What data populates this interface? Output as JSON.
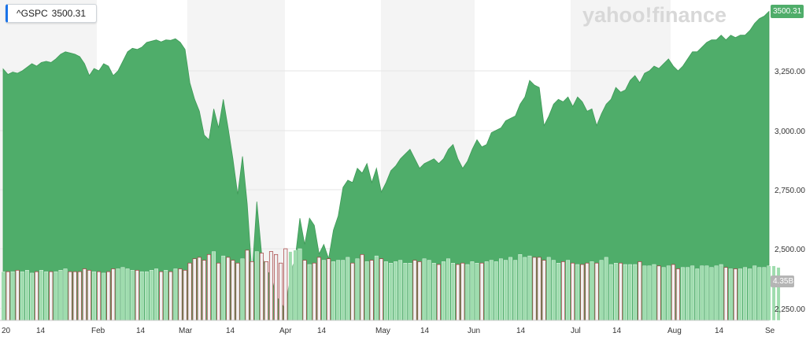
{
  "watermark": "yahoo!finance",
  "ticker": {
    "symbol": "^GSPC",
    "last_price": "3500.31"
  },
  "price_label": "3500.31",
  "volume_label": "4.35B",
  "colors": {
    "area": "#4fad6a",
    "band": "#f4f4f4",
    "vol_up": "#9fdcae",
    "vol_down": "#f1f1f1",
    "vol_down_stroke": "#a33a3a"
  },
  "chart_data": {
    "type": "area",
    "ticker": "^GSPC",
    "y_ticks": [
      "3,250.00",
      "3,000.00",
      "2,750.00",
      "2,500.00",
      "2,250.00"
    ],
    "ylim": [
      2220,
      3500
    ],
    "x_ticks": [
      "20",
      "14",
      "Feb",
      "14",
      "Mar",
      "14",
      "Apr",
      "14",
      "May",
      "14",
      "Jun",
      "14",
      "Jul",
      "14",
      "Aug",
      "14",
      "Se"
    ],
    "series": [
      {
        "values": [
          3258,
          3235,
          3245,
          3240,
          3250,
          3265,
          3280,
          3270,
          3285,
          3290,
          3285,
          3300,
          3320,
          3330,
          3325,
          3320,
          3310,
          3280,
          3230,
          3260,
          3250,
          3280,
          3270,
          3230,
          3250,
          3290,
          3330,
          3345,
          3340,
          3350,
          3370,
          3375,
          3380,
          3372,
          3380,
          3378,
          3385,
          3370,
          3340,
          3200,
          3130,
          3080,
          2980,
          2960,
          3090,
          3010,
          3130,
          3010,
          2880,
          2730,
          2890,
          2690,
          2390,
          2700,
          2480,
          2410,
          2390,
          2300,
          2280,
          2240,
          2400,
          2460,
          2630,
          2520,
          2630,
          2600,
          2480,
          2520,
          2460,
          2580,
          2640,
          2760,
          2790,
          2780,
          2840,
          2820,
          2860,
          2780,
          2840,
          2740,
          2780,
          2830,
          2850,
          2880,
          2900,
          2920,
          2880,
          2840,
          2860,
          2870,
          2880,
          2860,
          2880,
          2920,
          2940,
          2880,
          2840,
          2870,
          2920,
          2960,
          2930,
          2940,
          2990,
          3000,
          3010,
          3040,
          3050,
          3060,
          3110,
          3140,
          3210,
          3190,
          3180,
          3020,
          3060,
          3110,
          3130,
          3120,
          3140,
          3100,
          3140,
          3120,
          3080,
          3090,
          3020,
          3070,
          3110,
          3130,
          3180,
          3160,
          3170,
          3210,
          3230,
          3200,
          3240,
          3250,
          3270,
          3260,
          3280,
          3300,
          3270,
          3250,
          3270,
          3300,
          3330,
          3330,
          3350,
          3370,
          3380,
          3380,
          3400,
          3380,
          3400,
          3390,
          3400,
          3400,
          3420,
          3450,
          3470,
          3480,
          3500
        ]
      },
      {
        "name": "Volume",
        "values": [
          3.4,
          3.4,
          3.4,
          3.5,
          3.4,
          3.5,
          3.3,
          3.4,
          3.5,
          3.4,
          3.4,
          3.4,
          3.5,
          3.6,
          3.4,
          3.4,
          3.4,
          3.6,
          3.5,
          3.4,
          3.4,
          3.3,
          3.4,
          3.6,
          3.6,
          3.7,
          3.6,
          3.5,
          3.5,
          3.4,
          3.4,
          3.5,
          3.6,
          3.4,
          3.5,
          3.4,
          3.6,
          3.6,
          3.5,
          4.0,
          4.3,
          4.4,
          4.2,
          4.6,
          4.8,
          4.0,
          4.5,
          4.4,
          4.2,
          4.0,
          4.3,
          4.9,
          4.1,
          4.8,
          4.7,
          4.1,
          4.8,
          4.6,
          4.0,
          5.0,
          4.8,
          4.9,
          5.0,
          4.2,
          3.9,
          4.0,
          4.4,
          4.2,
          4.3,
          4.1,
          4.2,
          4.2,
          4.4,
          4.0,
          4.3,
          4.6,
          4.1,
          4.2,
          4.5,
          4.3,
          4.1,
          4.0,
          4.1,
          4.2,
          4.0,
          4.0,
          4.2,
          4.1,
          4.3,
          4.2,
          4.0,
          3.9,
          4.1,
          4.3,
          4.0,
          3.9,
          4.0,
          3.9,
          4.1,
          4.0,
          4.0,
          4.1,
          4.2,
          4.1,
          4.3,
          4.2,
          4.4,
          4.2,
          4.6,
          4.4,
          4.5,
          4.4,
          4.4,
          4.2,
          4.4,
          4.2,
          4.0,
          4.1,
          4.2,
          4.0,
          3.9,
          3.9,
          4.0,
          4.1,
          4.0,
          4.2,
          4.4,
          3.9,
          4.0,
          4.0,
          3.9,
          3.9,
          3.9,
          4.1,
          3.8,
          3.8,
          3.9,
          3.8,
          3.7,
          3.8,
          3.9,
          3.6,
          3.7,
          3.7,
          3.8,
          3.6,
          3.8,
          3.8,
          3.7,
          3.8,
          3.9,
          3.7,
          3.6,
          3.6,
          3.6,
          3.7,
          3.6,
          3.8,
          3.7,
          3.7,
          3.8,
          3.8,
          3.7
        ]
      }
    ],
    "grid": true
  }
}
